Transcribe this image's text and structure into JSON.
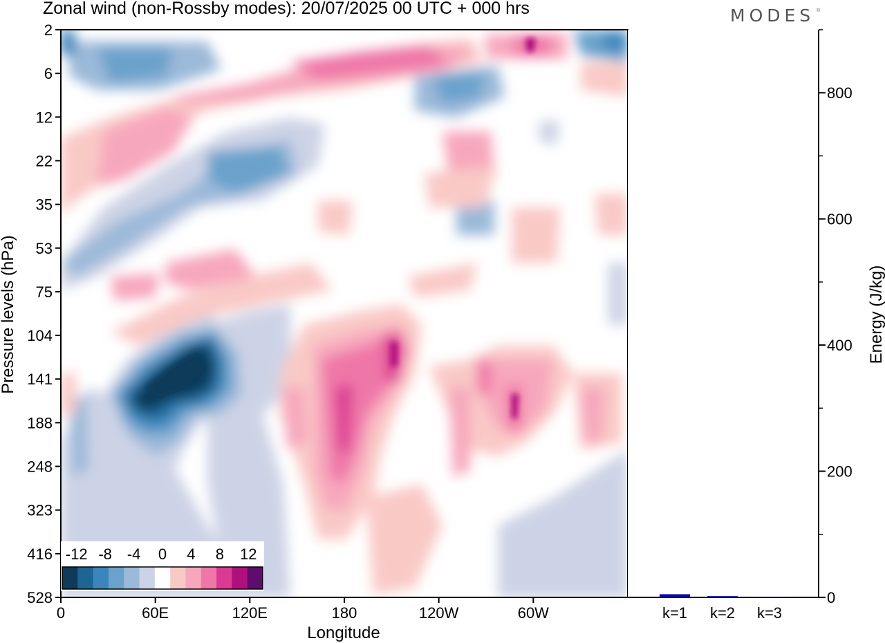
{
  "header": {
    "title": "Zonal wind (non-Rossby modes):  20/07/2025  00 UTC  + 000 hrs",
    "brand": "MODES",
    "brand_mark": "®"
  },
  "chart_data": [
    {
      "type": "heatmap",
      "title": "Zonal wind (non-Rossby modes):  20/07/2025  00 UTC  + 000 hrs",
      "xlabel": "Longitude",
      "ylabel": "Pressure levels (hPa)",
      "x_ticks": [
        "0",
        "60E",
        "120E",
        "180",
        "120W",
        "60W"
      ],
      "x_tick_values": [
        0,
        60,
        120,
        180,
        240,
        300
      ],
      "xlim": [
        0,
        360
      ],
      "y_ticks": [
        "2",
        "6",
        "12",
        "22",
        "35",
        "53",
        "75",
        "104",
        "141",
        "188",
        "248",
        "323",
        "416",
        "528"
      ],
      "colorbar": {
        "labels": [
          "-12",
          "-8",
          "-4",
          "0",
          "4",
          "8",
          "12"
        ],
        "label_values": [
          -12,
          -8,
          -4,
          0,
          4,
          8,
          12
        ],
        "levels": [
          -14,
          -12,
          -10,
          -8,
          -6,
          -4,
          -2,
          2,
          4,
          6,
          8,
          10,
          12,
          14
        ],
        "colors": [
          "#0f3a5a",
          "#1f6594",
          "#3a85bb",
          "#6aa2cc",
          "#9bb9d9",
          "#cdd3e6",
          "#ffffff",
          "#f9c9c6",
          "#f7a7bd",
          "#ef77a8",
          "#db3a93",
          "#b0107e",
          "#5e0d6e"
        ]
      },
      "features": [
        {
          "name": "strong easterlies",
          "lon": 80,
          "level": "141",
          "value": -14
        },
        {
          "name": "upper-level easterlies",
          "lon": 35,
          "level": "6",
          "value": -8
        },
        {
          "name": "easterlies band",
          "lon": 130,
          "level": "22",
          "value": -8
        },
        {
          "name": "westerlies core",
          "lon": 180,
          "level": "188",
          "value": 10
        },
        {
          "name": "westerlies core",
          "lon": 205,
          "level": "141",
          "value": 12
        },
        {
          "name": "stratospheric westerlies",
          "lon": 300,
          "level": "2",
          "value": 12
        },
        {
          "name": "westerlies",
          "lon": 290,
          "level": "141",
          "value": 10
        }
      ]
    },
    {
      "type": "bar",
      "title": "",
      "ylabel": "Energy (J/kg)",
      "categories": [
        "k=1",
        "k=2",
        "k=3"
      ],
      "values": [
        5,
        2,
        1
      ],
      "ylim": [
        0,
        900
      ],
      "y_ticks": [
        "0",
        "200",
        "400",
        "600",
        "800"
      ],
      "y_tick_values": [
        0,
        200,
        400,
        600,
        800
      ],
      "bar_color": "#0a0aa0"
    }
  ]
}
